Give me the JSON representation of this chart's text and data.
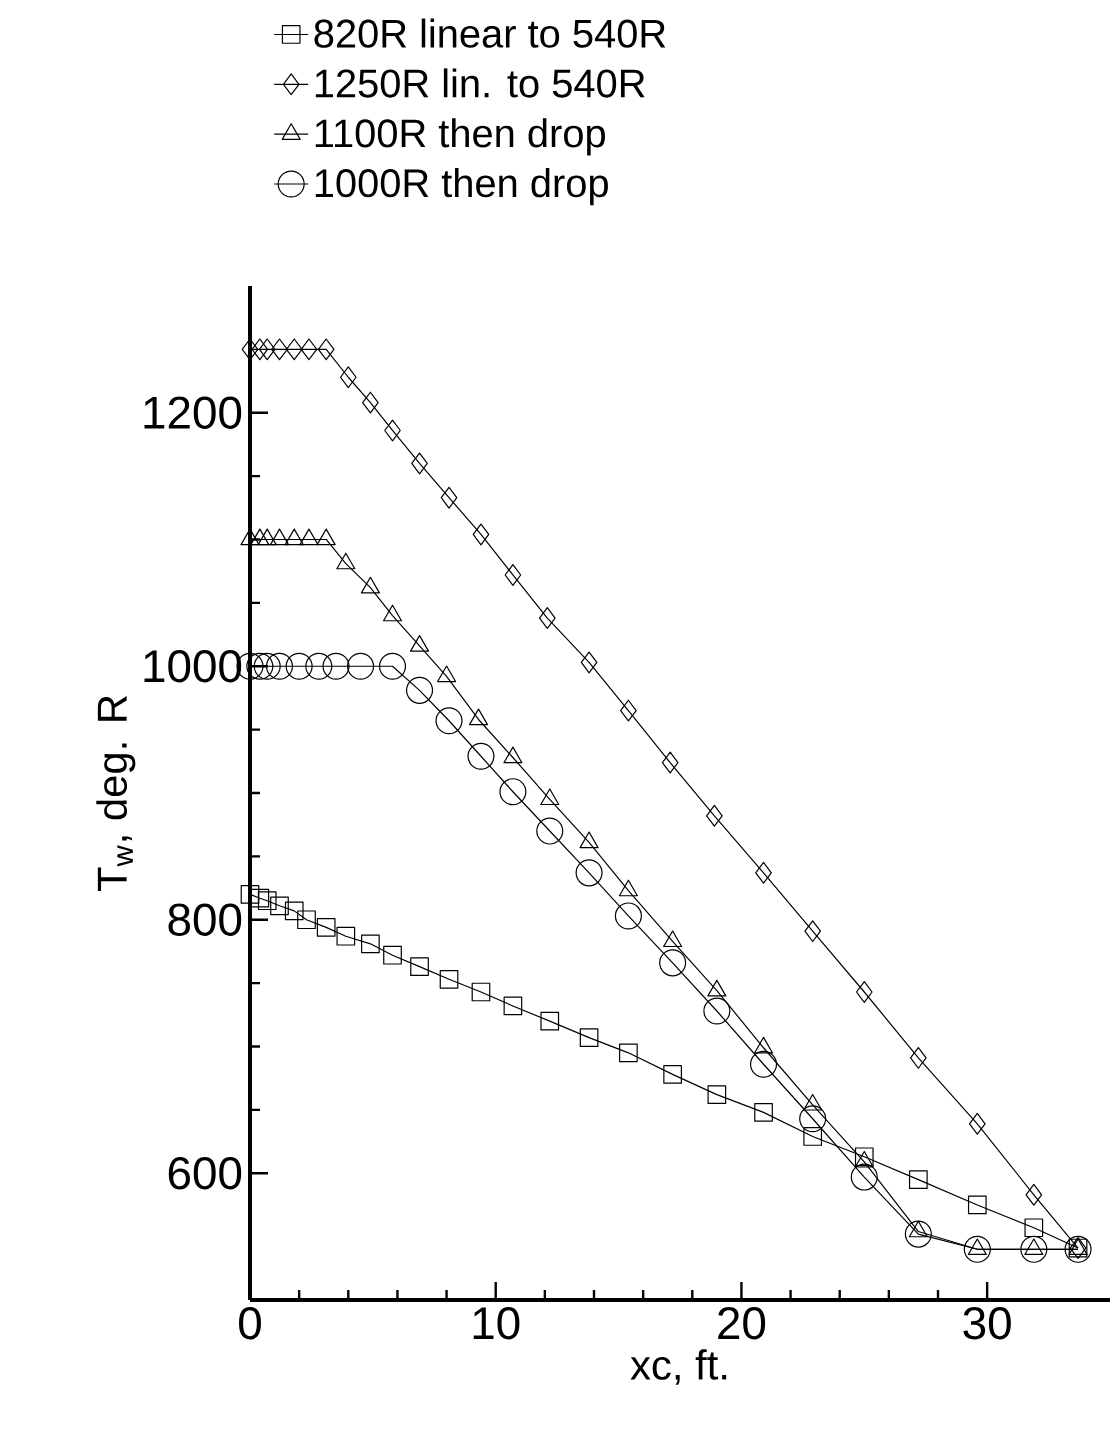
{
  "chart_data": {
    "type": "line",
    "xlabel": "xc, ft.",
    "ylabel": "T$_{w}$, deg. R",
    "xlim": [
      0,
      35
    ],
    "ylim": [
      500,
      1300
    ],
    "xticks": [
      0,
      10,
      20,
      30
    ],
    "yticks": [
      600,
      800,
      1000,
      1200
    ],
    "legend": "top",
    "line_style": "solid",
    "series": [
      {
        "name": "820R linear to 540R",
        "color": "#000000",
        "marker": "square",
        "x": [
          0,
          0.4,
          0.7,
          1.2,
          1.8,
          2.3,
          3.1,
          3.9,
          4.9,
          5.8,
          6.9,
          8.1,
          9.4,
          10.7,
          12.2,
          13.8,
          15.4,
          17.2,
          19.0,
          20.9,
          22.9,
          25.0,
          27.2,
          29.6,
          31.9,
          33.7
        ],
        "values": [
          820,
          817,
          815,
          811,
          807,
          800,
          794,
          787,
          781,
          772,
          763,
          753,
          743,
          732,
          720,
          707,
          695,
          678,
          662,
          648,
          629,
          613,
          595,
          575,
          557,
          541
        ]
      },
      {
        "name": "1250R lin. to 540R",
        "color": "#000000",
        "marker": "diamond",
        "x": [
          0,
          0.4,
          0.7,
          1.2,
          1.8,
          2.4,
          3.1,
          4.0,
          4.9,
          5.8,
          6.9,
          8.1,
          9.4,
          10.7,
          12.1,
          13.8,
          15.4,
          17.1,
          18.9,
          20.9,
          22.9,
          25.0,
          27.2,
          29.6,
          31.9,
          33.7
        ],
        "values": [
          1250,
          1250,
          1250,
          1250,
          1250,
          1250,
          1250,
          1228,
          1208,
          1186,
          1160,
          1133,
          1104,
          1072,
          1038,
          1003,
          965,
          924,
          882,
          837,
          791,
          743,
          691,
          639,
          583,
          541
        ]
      },
      {
        "name": "1100R then drop",
        "color": "#000000",
        "marker": "triangle",
        "x": [
          0,
          0.4,
          0.7,
          1.2,
          1.8,
          2.4,
          3.1,
          3.9,
          4.9,
          5.8,
          6.9,
          8.0,
          9.3,
          10.7,
          12.2,
          13.8,
          15.4,
          17.2,
          19.0,
          20.9,
          22.9,
          25.0,
          27.2,
          29.6,
          31.9,
          33.7
        ],
        "values": [
          1100,
          1100,
          1100,
          1100,
          1100,
          1100,
          1100,
          1081,
          1062,
          1040,
          1016,
          992,
          958,
          928,
          895,
          861,
          823,
          783,
          744,
          699,
          654,
          609,
          554,
          540,
          540,
          540
        ]
      },
      {
        "name": "1000R then drop",
        "color": "#000000",
        "marker": "circle",
        "x": [
          0,
          0.4,
          0.7,
          1.2,
          2.0,
          2.8,
          3.5,
          4.5,
          5.8,
          6.9,
          8.1,
          9.4,
          10.7,
          12.2,
          13.8,
          15.4,
          17.2,
          19.0,
          20.9,
          22.9,
          25.0,
          27.2,
          29.6,
          31.9,
          33.7
        ],
        "values": [
          1000,
          1000,
          1000,
          1000,
          1000,
          1000,
          1000,
          1000,
          1000,
          981,
          957,
          929,
          901,
          870,
          837,
          803,
          766,
          728,
          686,
          643,
          597,
          552,
          540,
          540,
          540
        ]
      }
    ]
  }
}
